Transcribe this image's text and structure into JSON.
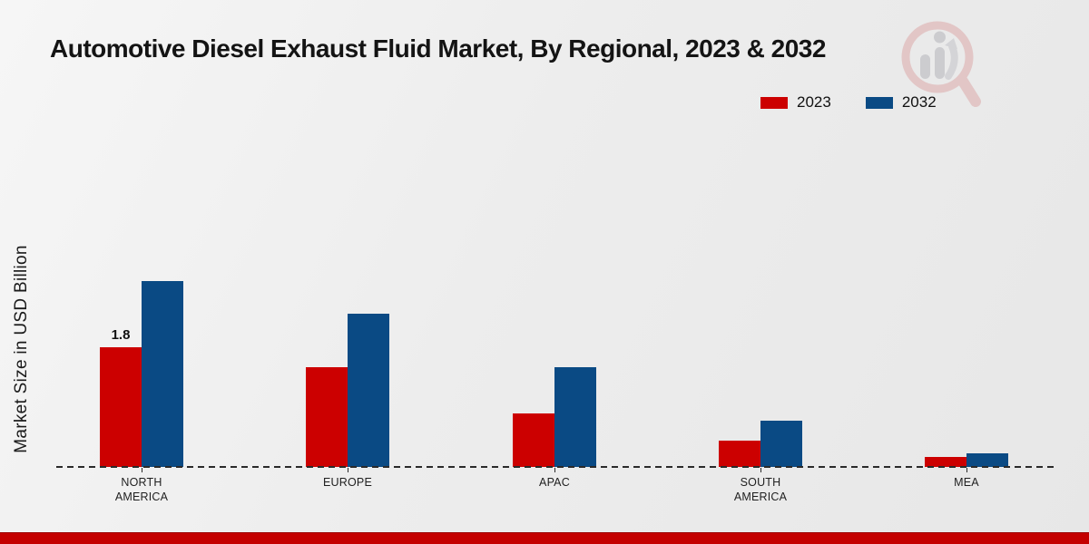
{
  "title": "Automotive Diesel Exhaust Fluid Market, By Regional, 2023 & 2032",
  "y_axis_label": "Market Size in USD Billion",
  "legend": {
    "position": "top-right",
    "items": [
      {
        "label": "2023",
        "color": "#cc0000"
      },
      {
        "label": "2032",
        "color": "#0a4a84"
      }
    ]
  },
  "watermark_icon": "magnifier-bar-chart-logo",
  "footer_bar_color": "#c40000",
  "chart_data": {
    "type": "bar",
    "title": "Automotive Diesel Exhaust Fluid Market, By Regional, 2023 & 2032",
    "xlabel": "",
    "ylabel": "Market Size in USD Billion",
    "categories": [
      "NORTH AMERICA",
      "EUROPE",
      "APAC",
      "SOUTH AMERICA",
      "MEA"
    ],
    "series": [
      {
        "name": "2023",
        "color": "#cc0000",
        "values": [
          1.8,
          1.5,
          0.8,
          0.4,
          0.15
        ],
        "point_labels": [
          "1.8",
          "",
          "",
          "",
          ""
        ]
      },
      {
        "name": "2032",
        "color": "#0a4a84",
        "values": [
          2.8,
          2.3,
          1.5,
          0.7,
          0.2
        ],
        "point_labels": [
          "",
          "",
          "",
          "",
          ""
        ]
      }
    ],
    "ylim": [
      0,
      3
    ],
    "y_axis_visible": false,
    "gridlines": false,
    "legend_position": "top-right",
    "baseline_style": "dashed"
  }
}
